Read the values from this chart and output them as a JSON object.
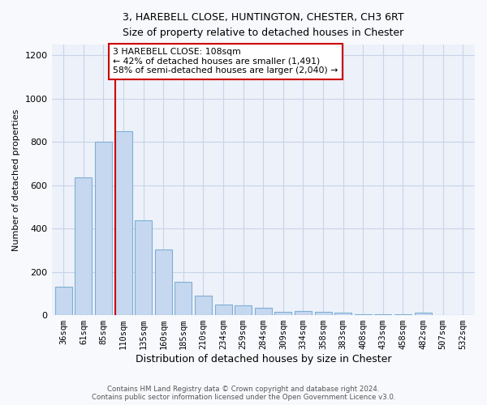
{
  "title_line1": "3, HAREBELL CLOSE, HUNTINGTON, CHESTER, CH3 6RT",
  "title_line2": "Size of property relative to detached houses in Chester",
  "xlabel": "Distribution of detached houses by size in Chester",
  "ylabel": "Number of detached properties",
  "categories": [
    "36sqm",
    "61sqm",
    "85sqm",
    "110sqm",
    "135sqm",
    "160sqm",
    "185sqm",
    "210sqm",
    "234sqm",
    "259sqm",
    "284sqm",
    "309sqm",
    "334sqm",
    "358sqm",
    "383sqm",
    "408sqm",
    "433sqm",
    "458sqm",
    "482sqm",
    "507sqm",
    "532sqm"
  ],
  "values": [
    130,
    635,
    800,
    850,
    440,
    305,
    155,
    90,
    50,
    47,
    35,
    15,
    20,
    17,
    10,
    5,
    4,
    3,
    10,
    0,
    0
  ],
  "bar_color": "#c5d8f0",
  "bar_edge_color": "#7eaed4",
  "vline_x_index": 3,
  "vline_color": "#cc0000",
  "annotation_text": "3 HAREBELL CLOSE: 108sqm\n← 42% of detached houses are smaller (1,491)\n58% of semi-detached houses are larger (2,040) →",
  "annotation_box_color": "#ffffff",
  "annotation_box_edge_color": "#cc0000",
  "ylim": [
    0,
    1250
  ],
  "yticks": [
    0,
    200,
    400,
    600,
    800,
    1000,
    1200
  ],
  "background_color": "#f0f4fa",
  "plot_bg_color": "#edf1f9",
  "grid_color": "#d8dff0",
  "footer_line1": "Contains HM Land Registry data © Crown copyright and database right 2024.",
  "footer_line2": "Contains public sector information licensed under the Open Government Licence v3.0."
}
